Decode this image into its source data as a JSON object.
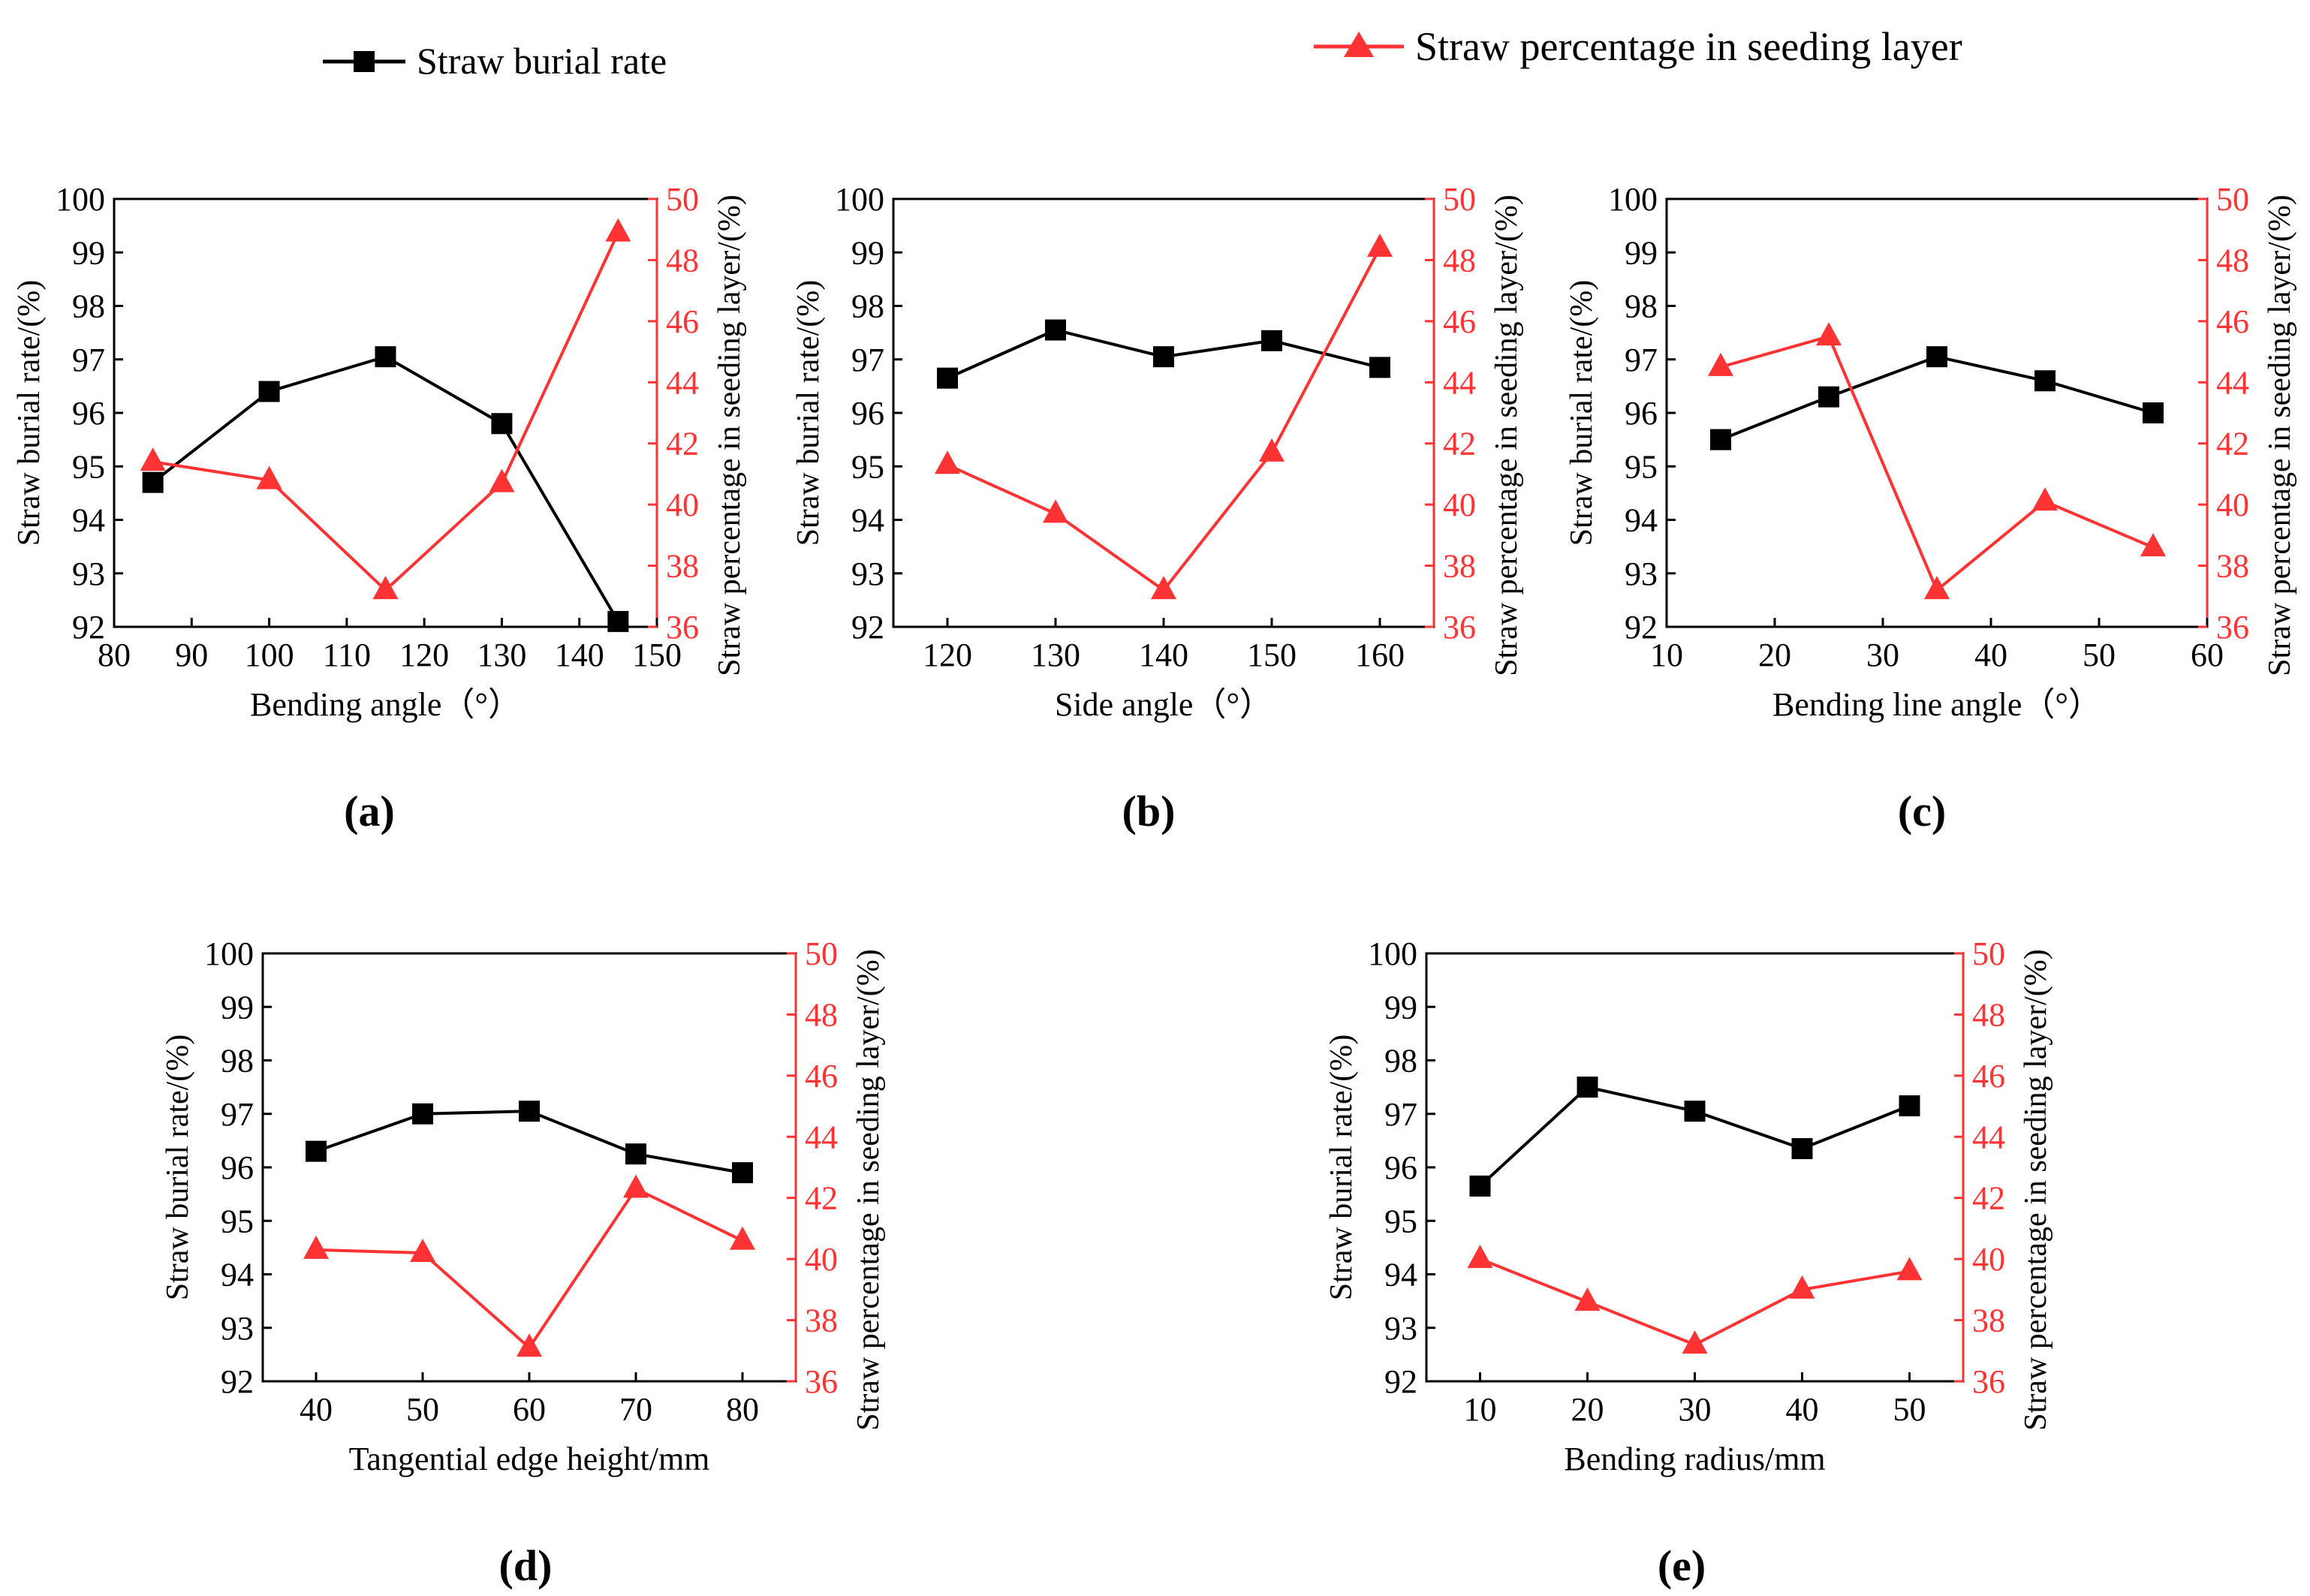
{
  "legend": {
    "burial_label": "Straw burial rate",
    "percentage_label": "Straw percentage in seeding layer"
  },
  "colors": {
    "burial": "#000000",
    "percentage": "#ff3333",
    "axis": "#000000"
  },
  "chart_data": [
    {
      "type": "line",
      "label": "(a)",
      "xlabel": "Bending angle（°）",
      "ylabel_left": "Straw burial rate/(%)",
      "ylabel_right": "Straw percentage in seeding layer/(%)",
      "xlim": [
        80,
        150
      ],
      "xticks": [
        80,
        90,
        100,
        110,
        120,
        130,
        140,
        150
      ],
      "ylim_left": [
        92,
        100
      ],
      "yticks_left": [
        92,
        93,
        94,
        95,
        96,
        97,
        98,
        99,
        100
      ],
      "ylim_right": [
        36,
        50
      ],
      "yticks_right": [
        36,
        38,
        40,
        42,
        44,
        46,
        48,
        50
      ],
      "x": [
        85,
        100,
        115,
        130,
        145
      ],
      "series": [
        {
          "name": "Straw burial rate",
          "axis": "left",
          "marker": "square",
          "values": [
            94.7,
            96.4,
            97.05,
            95.8,
            92.1
          ]
        },
        {
          "name": "Straw percentage in seeding layer",
          "axis": "right",
          "marker": "triangle",
          "values": [
            41.4,
            40.8,
            37.2,
            40.7,
            48.9
          ]
        }
      ]
    },
    {
      "type": "line",
      "label": "(b)",
      "xlabel": "Side angle（°）",
      "ylabel_left": "Straw burial rate/(%)",
      "ylabel_right": "Straw percentage in seeding layer/(%)",
      "xlim": [
        115,
        165
      ],
      "xticks": [
        120,
        130,
        140,
        150,
        160
      ],
      "ylim_left": [
        92,
        100
      ],
      "yticks_left": [
        92,
        93,
        94,
        95,
        96,
        97,
        98,
        99,
        100
      ],
      "ylim_right": [
        36,
        50
      ],
      "yticks_right": [
        36,
        38,
        40,
        42,
        44,
        46,
        48,
        50
      ],
      "x": [
        120,
        130,
        140,
        150,
        160
      ],
      "series": [
        {
          "name": "Straw burial rate",
          "axis": "left",
          "marker": "square",
          "values": [
            96.65,
            97.55,
            97.05,
            97.35,
            96.85
          ]
        },
        {
          "name": "Straw percentage in seeding layer",
          "axis": "right",
          "marker": "triangle",
          "values": [
            41.3,
            39.7,
            37.2,
            41.7,
            48.4
          ]
        }
      ]
    },
    {
      "type": "line",
      "label": "(c)",
      "xlabel": "Bending line angle（°）",
      "ylabel_left": "Straw burial rate/(%)",
      "ylabel_right": "Straw percentage in seeding layer/(%)",
      "xlim": [
        10,
        60
      ],
      "xticks": [
        10,
        20,
        30,
        40,
        50,
        60
      ],
      "ylim_left": [
        92,
        100
      ],
      "yticks_left": [
        92,
        93,
        94,
        95,
        96,
        97,
        98,
        99,
        100
      ],
      "ylim_right": [
        36,
        50
      ],
      "yticks_right": [
        36,
        38,
        40,
        42,
        44,
        46,
        48,
        50
      ],
      "x": [
        15,
        25,
        35,
        45,
        55
      ],
      "series": [
        {
          "name": "Straw burial rate",
          "axis": "left",
          "marker": "square",
          "values": [
            95.5,
            96.3,
            97.05,
            96.6,
            96.0
          ]
        },
        {
          "name": "Straw percentage in seeding layer",
          "axis": "right",
          "marker": "triangle",
          "values": [
            44.5,
            45.5,
            37.2,
            40.1,
            38.6
          ]
        }
      ]
    },
    {
      "type": "line",
      "label": "(d)",
      "xlabel": "Tangential edge height/mm",
      "ylabel_left": "Straw burial rate/(%)",
      "ylabel_right": "Straw percentage in seeding layer/(%)",
      "xlim": [
        35,
        85
      ],
      "xticks": [
        40,
        50,
        60,
        70,
        80
      ],
      "ylim_left": [
        92,
        100
      ],
      "yticks_left": [
        92,
        93,
        94,
        95,
        96,
        97,
        98,
        99,
        100
      ],
      "ylim_right": [
        36,
        50
      ],
      "yticks_right": [
        36,
        38,
        40,
        42,
        44,
        46,
        48,
        50
      ],
      "x": [
        40,
        50,
        60,
        70,
        80
      ],
      "series": [
        {
          "name": "Straw burial rate",
          "axis": "left",
          "marker": "square",
          "values": [
            96.3,
            97.0,
            97.05,
            96.25,
            95.9
          ]
        },
        {
          "name": "Straw percentage in seeding layer",
          "axis": "right",
          "marker": "triangle",
          "values": [
            40.3,
            40.2,
            37.1,
            42.3,
            40.6
          ]
        }
      ]
    },
    {
      "type": "line",
      "label": "(e)",
      "xlabel": "Bending radius/mm",
      "ylabel_left": "Straw burial rate/(%)",
      "ylabel_right": "Straw percentage in seeding layer/(%)",
      "xlim": [
        5,
        55
      ],
      "xticks": [
        10,
        20,
        30,
        40,
        50
      ],
      "ylim_left": [
        92,
        100
      ],
      "yticks_left": [
        92,
        93,
        94,
        95,
        96,
        97,
        98,
        99,
        100
      ],
      "ylim_right": [
        36,
        50
      ],
      "yticks_right": [
        36,
        38,
        40,
        42,
        44,
        46,
        48,
        50
      ],
      "x": [
        10,
        20,
        30,
        40,
        50
      ],
      "series": [
        {
          "name": "Straw burial rate",
          "axis": "left",
          "marker": "square",
          "values": [
            95.65,
            97.5,
            97.05,
            96.35,
            97.15
          ]
        },
        {
          "name": "Straw percentage in seeding layer",
          "axis": "right",
          "marker": "triangle",
          "values": [
            40.0,
            38.6,
            37.2,
            39.0,
            39.6
          ]
        }
      ]
    }
  ]
}
